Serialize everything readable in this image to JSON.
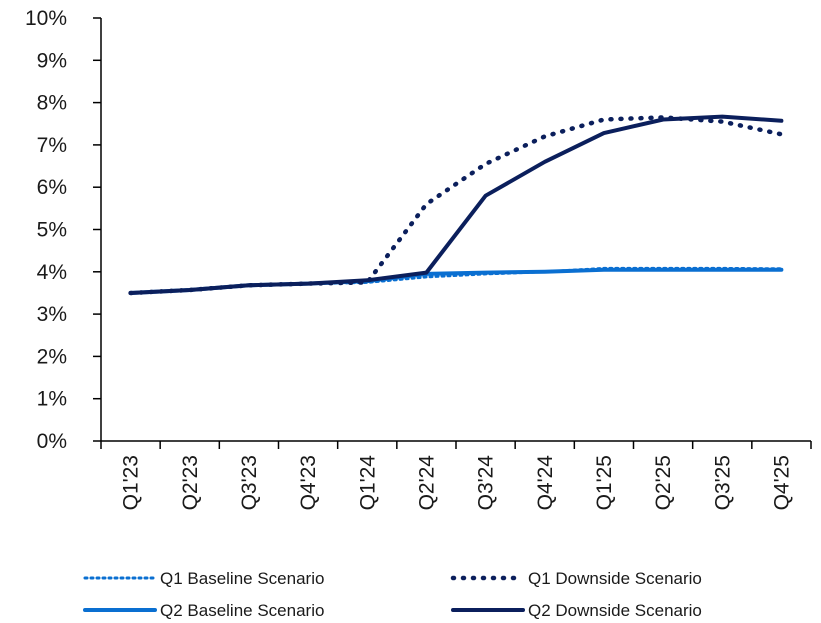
{
  "chart_data": {
    "type": "line",
    "categories": [
      "Q1'23",
      "Q2'23",
      "Q3'23",
      "Q4'23",
      "Q1'24",
      "Q2'24",
      "Q3'24",
      "Q4'24",
      "Q1'25",
      "Q2'25",
      "Q3'25",
      "Q4'25"
    ],
    "ylim": [
      0,
      10
    ],
    "y_ticks": [
      "0%",
      "1%",
      "2%",
      "3%",
      "4%",
      "5%",
      "6%",
      "7%",
      "8%",
      "9%",
      "10%"
    ],
    "grid": false,
    "legend_position": "bottom",
    "series": [
      {
        "name": "Q1 Baseline Scenario",
        "color": "#0a6fd1",
        "style": "dotted",
        "values": [
          3.5,
          3.57,
          3.68,
          3.72,
          3.75,
          3.88,
          3.95,
          4.0,
          4.08,
          4.08,
          4.08,
          4.07
        ]
      },
      {
        "name": "Q1 Downside Scenario",
        "color": "#0b1f5c",
        "style": "dotted",
        "values": [
          3.5,
          3.57,
          3.68,
          3.72,
          3.75,
          5.6,
          6.55,
          7.2,
          7.6,
          7.65,
          7.55,
          7.25
        ]
      },
      {
        "name": "Q2 Baseline Scenario",
        "color": "#0a6fd1",
        "style": "solid",
        "values": [
          3.5,
          3.57,
          3.68,
          3.72,
          3.78,
          3.95,
          3.98,
          4.0,
          4.05,
          4.05,
          4.05,
          4.05
        ]
      },
      {
        "name": "Q2 Downside Scenario",
        "color": "#0b1f5c",
        "style": "solid",
        "values": [
          3.5,
          3.57,
          3.68,
          3.72,
          3.8,
          3.98,
          5.8,
          6.6,
          7.28,
          7.6,
          7.67,
          7.57
        ]
      }
    ]
  }
}
